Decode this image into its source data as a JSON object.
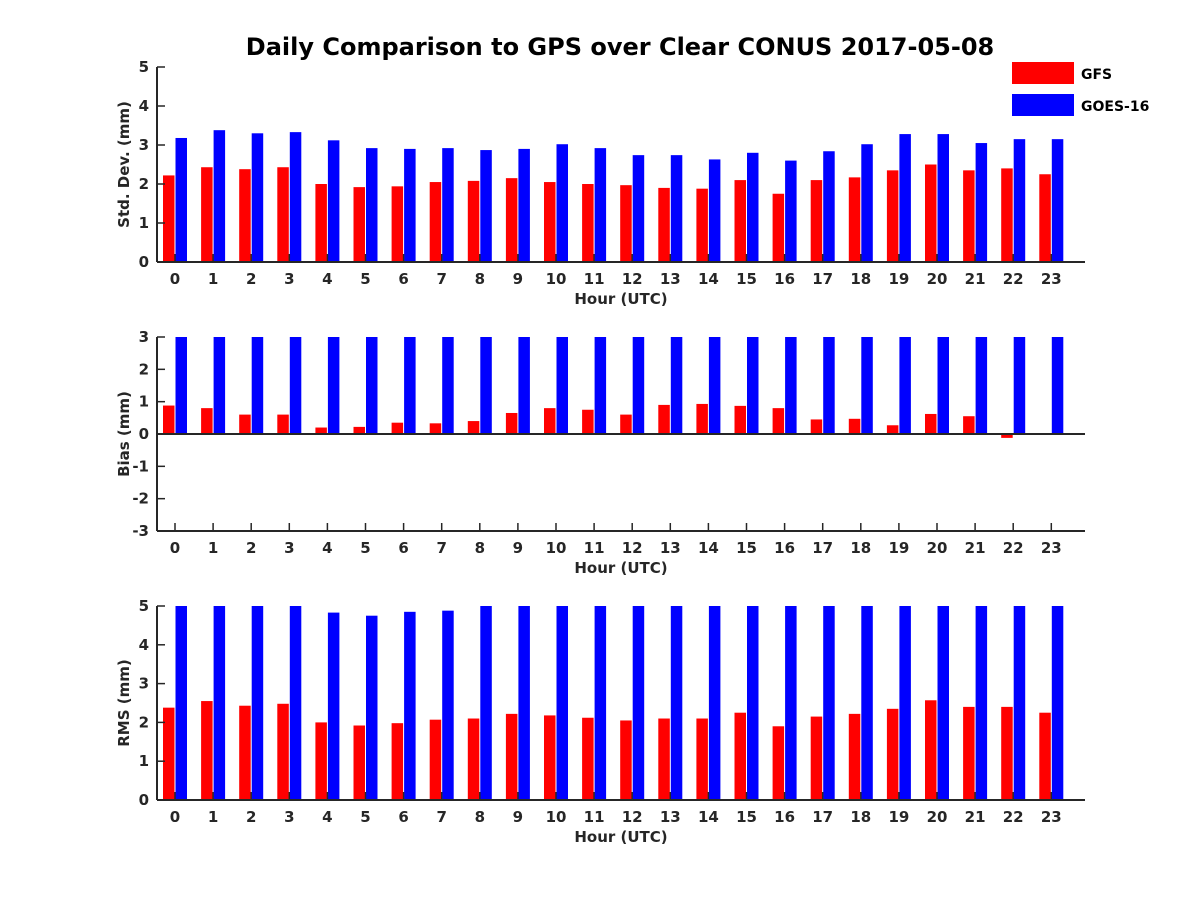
{
  "title": "Daily Comparison to GPS over Clear CONUS 2017-05-08",
  "legend": {
    "placement": "top-right",
    "entries": [
      {
        "name": "GFS",
        "color": "#ff0000"
      },
      {
        "name": "GOES-16",
        "color": "#0000ff"
      }
    ]
  },
  "chart_data": [
    {
      "type": "bar",
      "ylabel": "Std. Dev. (mm)",
      "xlabel": "Hour (UTC)",
      "ylim": [
        0,
        5
      ],
      "yticks": [
        "0",
        "1",
        "2",
        "3",
        "4",
        "5"
      ],
      "categories": [
        "0",
        "1",
        "2",
        "3",
        "4",
        "5",
        "6",
        "7",
        "8",
        "9",
        "10",
        "11",
        "12",
        "13",
        "14",
        "15",
        "16",
        "17",
        "18",
        "19",
        "20",
        "21",
        "22",
        "23"
      ],
      "series": [
        {
          "name": "GFS",
          "color": "#ff0000",
          "values": [
            2.22,
            2.43,
            2.38,
            2.43,
            2.0,
            1.92,
            1.94,
            2.05,
            2.08,
            2.15,
            2.05,
            2.0,
            1.97,
            1.9,
            1.88,
            2.1,
            1.75,
            2.1,
            2.17,
            2.35,
            2.5,
            2.35,
            2.4,
            2.25
          ]
        },
        {
          "name": "GOES-16",
          "color": "#0000ff",
          "values": [
            3.18,
            3.38,
            3.3,
            3.33,
            3.12,
            2.92,
            2.9,
            2.92,
            2.87,
            2.9,
            3.02,
            2.92,
            2.74,
            2.74,
            2.63,
            2.8,
            2.6,
            2.84,
            3.02,
            3.28,
            3.28,
            3.05,
            3.15,
            3.15
          ]
        }
      ]
    },
    {
      "type": "bar",
      "ylabel": "Bias (mm)",
      "xlabel": "Hour (UTC)",
      "ylim": [
        -3,
        3
      ],
      "yticks": [
        "-3",
        "-2",
        "-1",
        "0",
        "1",
        "2",
        "3"
      ],
      "categories": [
        "0",
        "1",
        "2",
        "3",
        "4",
        "5",
        "6",
        "7",
        "8",
        "9",
        "10",
        "11",
        "12",
        "13",
        "14",
        "15",
        "16",
        "17",
        "18",
        "19",
        "20",
        "21",
        "22",
        "23"
      ],
      "series": [
        {
          "name": "GFS",
          "color": "#ff0000",
          "values": [
            0.88,
            0.8,
            0.6,
            0.6,
            0.2,
            0.22,
            0.35,
            0.33,
            0.4,
            0.65,
            0.8,
            0.75,
            0.6,
            0.9,
            0.93,
            0.87,
            0.8,
            0.45,
            0.47,
            0.27,
            0.62,
            0.55,
            -0.12,
            0.03
          ]
        },
        {
          "name": "GOES-16",
          "color": "#0000ff",
          "values": [
            3,
            3,
            3,
            3,
            3,
            3,
            3,
            3,
            3,
            3,
            3,
            3,
            3,
            3,
            3,
            3,
            3,
            3,
            3,
            3,
            3,
            3,
            3,
            3
          ]
        }
      ]
    },
    {
      "type": "bar",
      "ylabel": "RMS (mm)",
      "xlabel": "Hour (UTC)",
      "ylim": [
        0,
        5
      ],
      "yticks": [
        "0",
        "1",
        "2",
        "3",
        "4",
        "5"
      ],
      "categories": [
        "0",
        "1",
        "2",
        "3",
        "4",
        "5",
        "6",
        "7",
        "8",
        "9",
        "10",
        "11",
        "12",
        "13",
        "14",
        "15",
        "16",
        "17",
        "18",
        "19",
        "20",
        "21",
        "22",
        "23"
      ],
      "series": [
        {
          "name": "GFS",
          "color": "#ff0000",
          "values": [
            2.38,
            2.55,
            2.43,
            2.48,
            2.0,
            1.92,
            1.98,
            2.07,
            2.1,
            2.22,
            2.18,
            2.12,
            2.05,
            2.1,
            2.1,
            2.25,
            1.9,
            2.15,
            2.22,
            2.35,
            2.57,
            2.4,
            2.4,
            2.25
          ]
        },
        {
          "name": "GOES-16",
          "color": "#0000ff",
          "values": [
            5,
            5,
            5,
            5,
            4.83,
            4.75,
            4.85,
            4.88,
            5,
            5,
            5,
            5,
            5,
            5,
            5,
            5,
            5,
            5,
            5,
            5,
            5,
            5,
            5,
            5
          ]
        }
      ]
    }
  ]
}
